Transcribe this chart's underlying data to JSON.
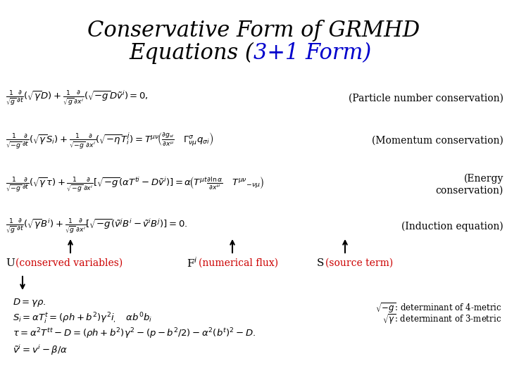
{
  "bg_color": "#ffffff",
  "title_color": "#000000",
  "title_colored_color": "#0000cc",
  "title_fontsize": 22,
  "eq_fontsize": 9.5,
  "label_fontsize": 10,
  "def_fontsize": 9.5,
  "note_fontsize": 8.5,
  "arrow_label_fontsize": 11,
  "label_color_red": "#cc0000",
  "label1": "(Particle number conservation)",
  "label2": "(Momentum conservation)",
  "label3": "(Energy\nconservation)",
  "label4": "(Induction equation)",
  "note1": "$\\sqrt{-g}$: determinant of 4-metric",
  "note2": "$\\sqrt{\\gamma}$: determinant of 3-metric"
}
